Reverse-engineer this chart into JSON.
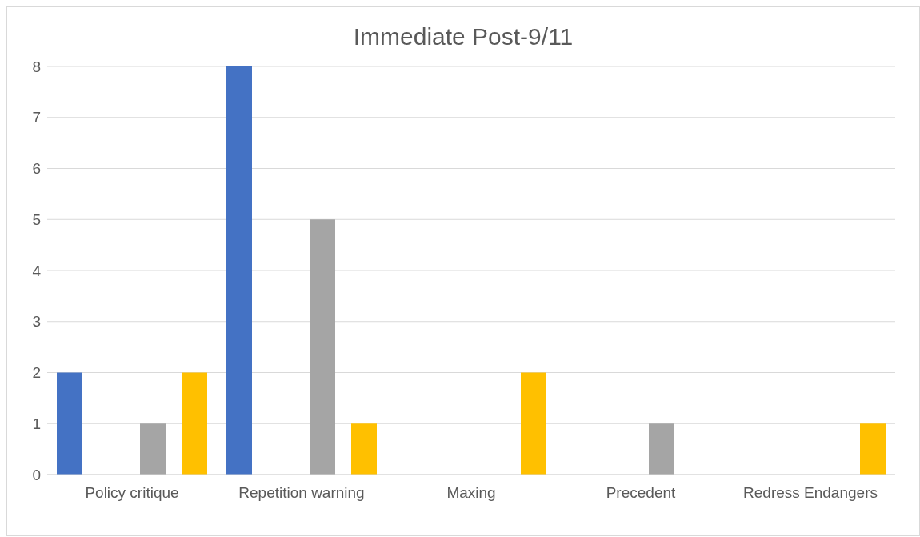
{
  "chart_data": {
    "type": "bar",
    "title": "Immediate Post-9/11",
    "categories": [
      "Policy critique",
      "Repetition warning",
      "Maxing",
      "Precedent",
      "Redress Endangers"
    ],
    "series": [
      {
        "color": "#4472c4",
        "values": [
          2,
          8,
          0,
          0,
          0
        ]
      },
      {
        "color": "#ed7d31",
        "values": [
          0,
          0,
          0,
          0,
          0
        ]
      },
      {
        "color": "#a5a5a5",
        "values": [
          1,
          5,
          0,
          1,
          0
        ]
      },
      {
        "color": "#ffc000",
        "values": [
          2,
          1,
          2,
          0,
          1
        ]
      }
    ],
    "ylim": [
      0,
      8
    ],
    "yticks": [
      0,
      1,
      2,
      3,
      4,
      5,
      6,
      7,
      8
    ],
    "grid": "y",
    "legend": false
  }
}
